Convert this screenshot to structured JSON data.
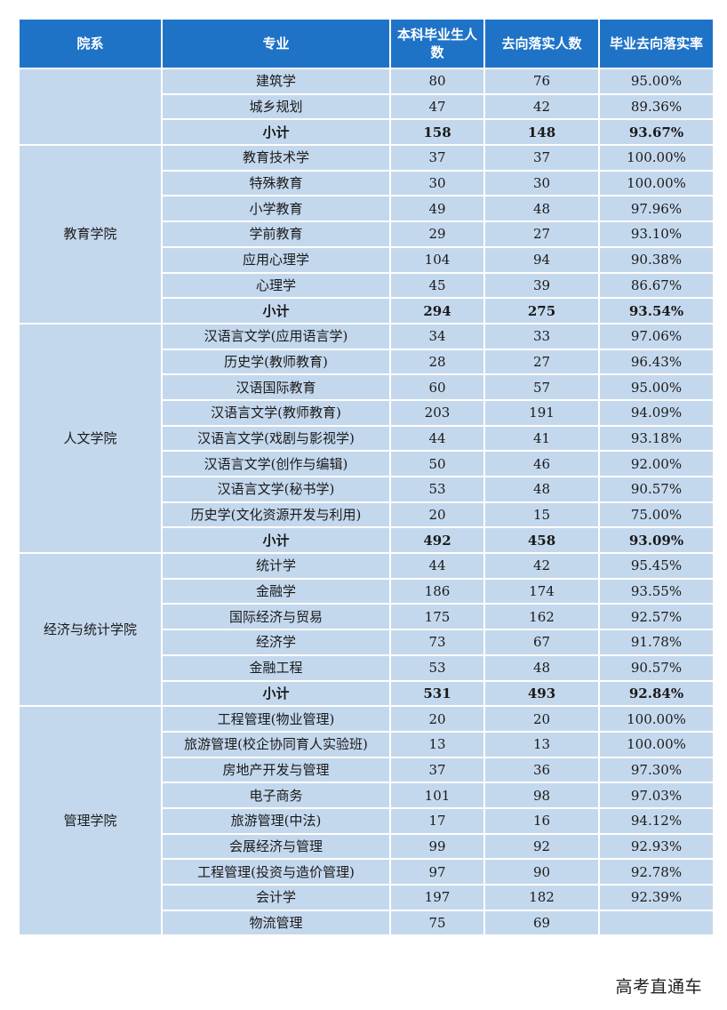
{
  "headers": [
    "院系",
    "专业",
    "本科毕业生人数",
    "去向落实人数",
    "毕业去向落实率"
  ],
  "groups": [
    {
      "dept": "",
      "rows": [
        {
          "major": "建筑学",
          "grads": "80",
          "placed": "76",
          "rate": "95.00%"
        },
        {
          "major": "城乡规划",
          "grads": "47",
          "placed": "42",
          "rate": "89.36%"
        },
        {
          "major": "小计",
          "grads": "158",
          "placed": "148",
          "rate": "93.67%",
          "subtotal": true
        }
      ]
    },
    {
      "dept": "教育学院",
      "rows": [
        {
          "major": "教育技术学",
          "grads": "37",
          "placed": "37",
          "rate": "100.00%"
        },
        {
          "major": "特殊教育",
          "grads": "30",
          "placed": "30",
          "rate": "100.00%"
        },
        {
          "major": "小学教育",
          "grads": "49",
          "placed": "48",
          "rate": "97.96%"
        },
        {
          "major": "学前教育",
          "grads": "29",
          "placed": "27",
          "rate": "93.10%"
        },
        {
          "major": "应用心理学",
          "grads": "104",
          "placed": "94",
          "rate": "90.38%"
        },
        {
          "major": "心理学",
          "grads": "45",
          "placed": "39",
          "rate": "86.67%"
        },
        {
          "major": "小计",
          "grads": "294",
          "placed": "275",
          "rate": "93.54%",
          "subtotal": true
        }
      ]
    },
    {
      "dept": "人文学院",
      "rows": [
        {
          "major": "汉语言文学(应用语言学)",
          "grads": "34",
          "placed": "33",
          "rate": "97.06%"
        },
        {
          "major": "历史学(教师教育)",
          "grads": "28",
          "placed": "27",
          "rate": "96.43%"
        },
        {
          "major": "汉语国际教育",
          "grads": "60",
          "placed": "57",
          "rate": "95.00%"
        },
        {
          "major": "汉语言文学(教师教育)",
          "grads": "203",
          "placed": "191",
          "rate": "94.09%"
        },
        {
          "major": "汉语言文学(戏剧与影视学)",
          "grads": "44",
          "placed": "41",
          "rate": "93.18%"
        },
        {
          "major": "汉语言文学(创作与编辑)",
          "grads": "50",
          "placed": "46",
          "rate": "92.00%"
        },
        {
          "major": "汉语言文学(秘书学)",
          "grads": "53",
          "placed": "48",
          "rate": "90.57%"
        },
        {
          "major": "历史学(文化资源开发与利用)",
          "grads": "20",
          "placed": "15",
          "rate": "75.00%"
        },
        {
          "major": "小计",
          "grads": "492",
          "placed": "458",
          "rate": "93.09%",
          "subtotal": true
        }
      ]
    },
    {
      "dept": "经济与统计学院",
      "rows": [
        {
          "major": "统计学",
          "grads": "44",
          "placed": "42",
          "rate": "95.45%"
        },
        {
          "major": "金融学",
          "grads": "186",
          "placed": "174",
          "rate": "93.55%"
        },
        {
          "major": "国际经济与贸易",
          "grads": "175",
          "placed": "162",
          "rate": "92.57%"
        },
        {
          "major": "经济学",
          "grads": "73",
          "placed": "67",
          "rate": "91.78%"
        },
        {
          "major": "金融工程",
          "grads": "53",
          "placed": "48",
          "rate": "90.57%"
        },
        {
          "major": "小计",
          "grads": "531",
          "placed": "493",
          "rate": "92.84%",
          "subtotal": true
        }
      ]
    },
    {
      "dept": "管理学院",
      "rows": [
        {
          "major": "工程管理(物业管理)",
          "grads": "20",
          "placed": "20",
          "rate": "100.00%"
        },
        {
          "major": "旅游管理(校企协同育人实验班)",
          "grads": "13",
          "placed": "13",
          "rate": "100.00%"
        },
        {
          "major": "房地产开发与管理",
          "grads": "37",
          "placed": "36",
          "rate": "97.30%"
        },
        {
          "major": "电子商务",
          "grads": "101",
          "placed": "98",
          "rate": "97.03%"
        },
        {
          "major": "旅游管理(中法)",
          "grads": "17",
          "placed": "16",
          "rate": "94.12%"
        },
        {
          "major": "会展经济与管理",
          "grads": "99",
          "placed": "92",
          "rate": "92.93%"
        },
        {
          "major": "工程管理(投资与造价管理)",
          "grads": "97",
          "placed": "90",
          "rate": "92.78%"
        },
        {
          "major": "会计学",
          "grads": "197",
          "placed": "182",
          "rate": "92.39%"
        },
        {
          "major": "物流管理",
          "grads": "75",
          "placed": "69",
          "rate": ""
        }
      ]
    }
  ],
  "watermark": "高考直通车"
}
